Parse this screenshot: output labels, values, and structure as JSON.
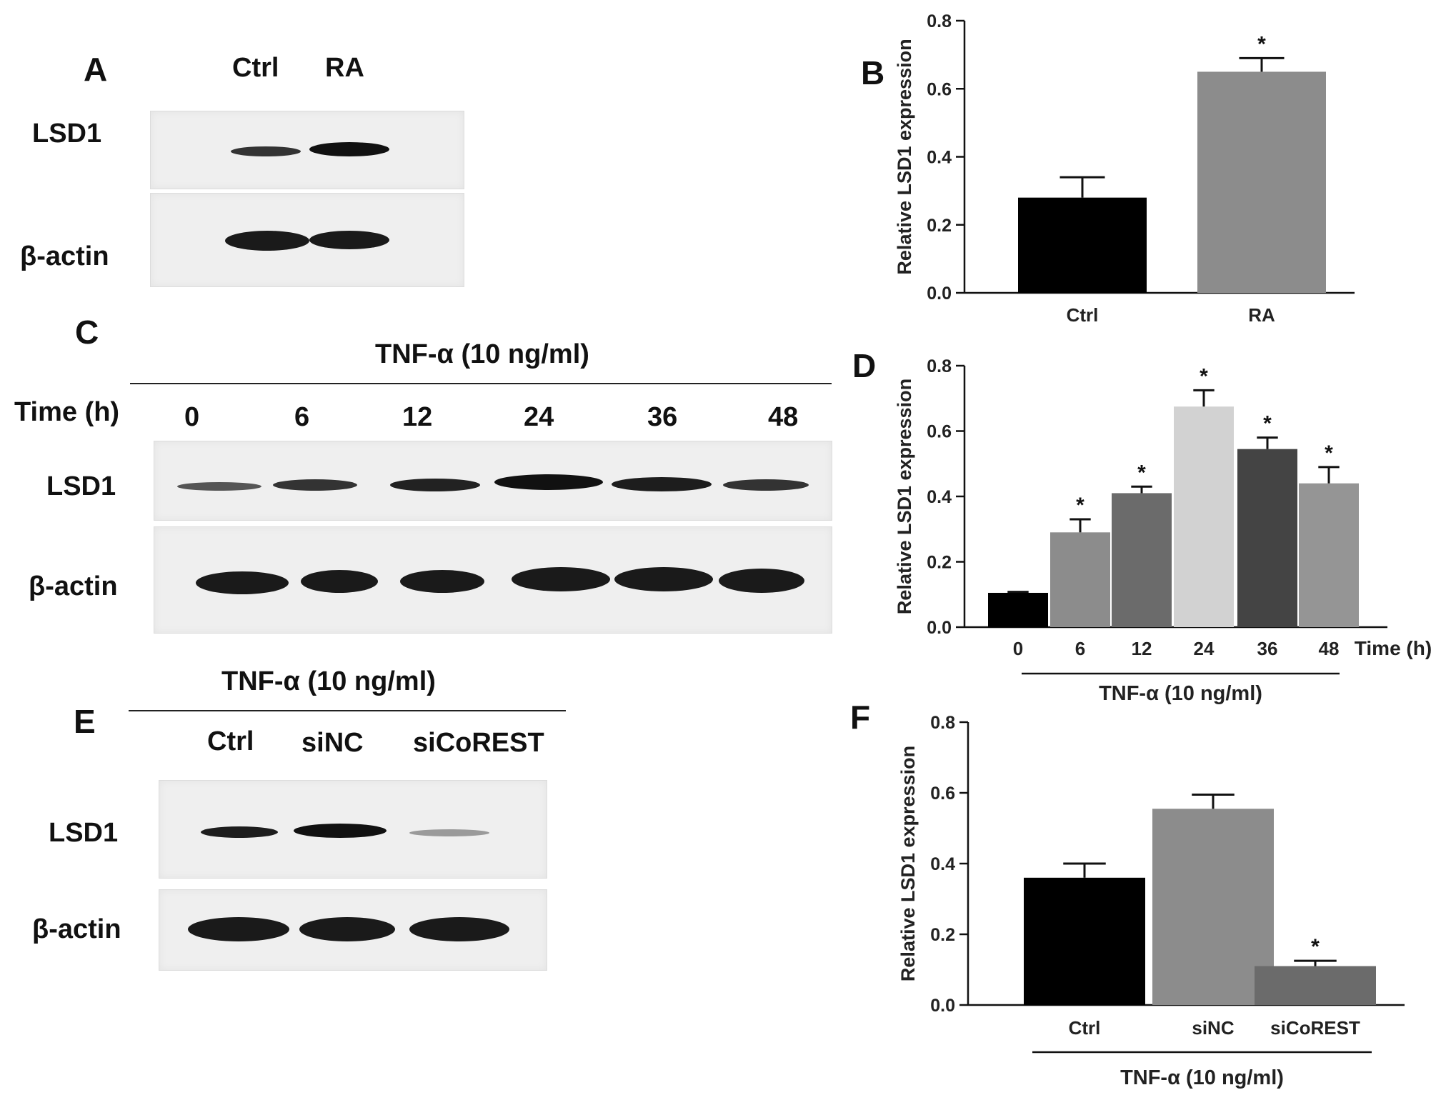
{
  "panels": {
    "A": {
      "letter": "A",
      "lanes": [
        "Ctrl",
        "RA"
      ],
      "blots": [
        {
          "label": "LSD1",
          "intensities": [
            0.55,
            1.0
          ]
        },
        {
          "label": "β-actin",
          "intensities": [
            1.0,
            0.9
          ]
        }
      ]
    },
    "C": {
      "letter": "C",
      "condition": "TNF-α (10 ng/ml)",
      "time_label": "Time (h)",
      "lanes": [
        "0",
        "6",
        "12",
        "24",
        "36",
        "48"
      ],
      "blots": [
        {
          "label": "LSD1",
          "intensities": [
            0.45,
            0.75,
            0.85,
            1.0,
            0.9,
            0.75
          ]
        },
        {
          "label": "β-actin",
          "intensities": [
            1.0,
            1.0,
            1.0,
            1.0,
            1.0,
            1.0
          ]
        }
      ]
    },
    "E": {
      "letter": "E",
      "condition": "TNF-α (10 ng/ml)",
      "lanes": [
        "Ctrl",
        "siNC",
        "siCoREST"
      ],
      "blots": [
        {
          "label": "LSD1",
          "intensities": [
            0.85,
            1.0,
            0.3
          ]
        },
        {
          "label": "β-actin",
          "intensities": [
            1.0,
            1.0,
            1.0
          ]
        }
      ]
    }
  },
  "chart_data": [
    {
      "panel": "B",
      "type": "bar",
      "categories": [
        "Ctrl",
        "RA"
      ],
      "values": [
        0.28,
        0.65
      ],
      "errors": [
        0.06,
        0.04
      ],
      "significance": [
        "",
        "*"
      ],
      "colors": [
        "#000000",
        "#8c8c8c"
      ],
      "ylabel": "Relative LSD1 expression",
      "ylim": [
        0,
        0.8
      ],
      "yticks": [
        "0.0",
        "0.2",
        "0.4",
        "0.6",
        "0.8"
      ],
      "xlabel": "",
      "group_label": ""
    },
    {
      "panel": "D",
      "type": "bar",
      "categories": [
        "0",
        "6",
        "12",
        "24",
        "36",
        "48"
      ],
      "values": [
        0.105,
        0.29,
        0.41,
        0.675,
        0.545,
        0.44
      ],
      "errors": [
        0.003,
        0.04,
        0.02,
        0.05,
        0.035,
        0.05
      ],
      "significance": [
        "",
        "*",
        "*",
        "*",
        "*",
        "*"
      ],
      "colors": [
        "#000000",
        "#8c8c8c",
        "#6b6b6b",
        "#d2d2d2",
        "#444444",
        "#959595"
      ],
      "ylabel": "Relative LSD1 expression",
      "ylim": [
        0,
        0.8
      ],
      "yticks": [
        "0.0",
        "0.2",
        "0.4",
        "0.6",
        "0.8"
      ],
      "xlabel": "Time (h)",
      "group_label": "TNF-α (10 ng/ml)"
    },
    {
      "panel": "F",
      "type": "bar",
      "categories": [
        "Ctrl",
        "siNC",
        "siCoREST"
      ],
      "values": [
        0.36,
        0.555,
        0.11
      ],
      "errors": [
        0.04,
        0.04,
        0.015
      ],
      "significance": [
        "",
        "",
        "*"
      ],
      "colors": [
        "#000000",
        "#8c8c8c",
        "#6b6b6b"
      ],
      "ylabel": "Relative LSD1 expression",
      "ylim": [
        0,
        0.8
      ],
      "yticks": [
        "0.0",
        "0.2",
        "0.4",
        "0.6",
        "0.8"
      ],
      "xlabel": "",
      "group_label": "TNF-α (10 ng/ml)"
    }
  ],
  "chart_letters": [
    "B",
    "D",
    "F"
  ]
}
